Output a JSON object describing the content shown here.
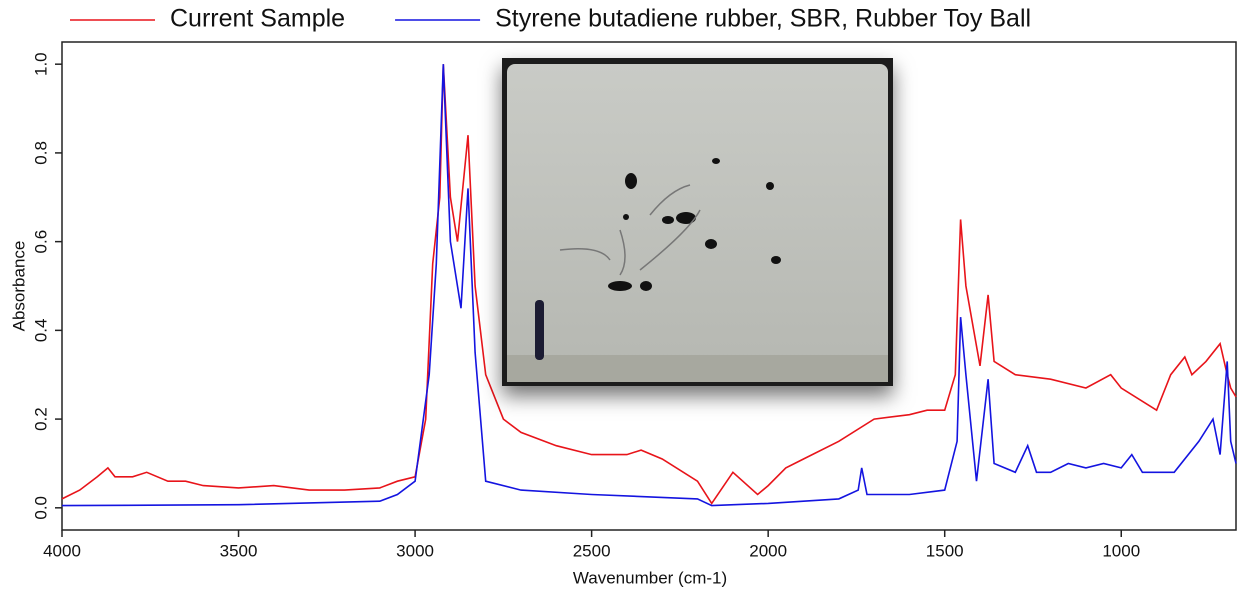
{
  "chart_data": {
    "type": "line",
    "xlabel": "Wavenumber (cm-1)",
    "ylabel": "Absorbance",
    "xlim": [
      4000,
      675
    ],
    "ylim": [
      -0.05,
      1.05
    ],
    "xticks": [
      4000,
      3500,
      3000,
      2500,
      2000,
      1500,
      1000
    ],
    "yticks": [
      {
        "value": 0,
        "label": "0.0"
      },
      0.2,
      0.4,
      0.6,
      0.8,
      {
        "value": 1,
        "label": "1.0"
      }
    ],
    "grid": false,
    "legend": "top",
    "series": [
      {
        "name": "Current Sample",
        "color": "#e8141a",
        "x": [
          4000,
          3950,
          3900,
          3870,
          3850,
          3800,
          3760,
          3700,
          3650,
          3600,
          3500,
          3400,
          3300,
          3200,
          3100,
          3050,
          3000,
          2970,
          2950,
          2930,
          2920,
          2900,
          2880,
          2850,
          2830,
          2800,
          2750,
          2700,
          2600,
          2500,
          2400,
          2360,
          2300,
          2200,
          2160,
          2100,
          2030,
          2000,
          1950,
          1900,
          1800,
          1700,
          1600,
          1550,
          1500,
          1470,
          1455,
          1440,
          1400,
          1377,
          1360,
          1300,
          1200,
          1100,
          1030,
          1000,
          900,
          860,
          820,
          800,
          760,
          720,
          700,
          690,
          675
        ],
        "values": [
          0.02,
          0.04,
          0.07,
          0.09,
          0.07,
          0.07,
          0.08,
          0.06,
          0.06,
          0.05,
          0.045,
          0.05,
          0.04,
          0.04,
          0.045,
          0.06,
          0.07,
          0.2,
          0.55,
          0.7,
          1.0,
          0.7,
          0.6,
          0.84,
          0.5,
          0.3,
          0.2,
          0.17,
          0.14,
          0.12,
          0.12,
          0.13,
          0.11,
          0.06,
          0.01,
          0.08,
          0.03,
          0.05,
          0.09,
          0.11,
          0.15,
          0.2,
          0.21,
          0.22,
          0.22,
          0.3,
          0.65,
          0.5,
          0.32,
          0.48,
          0.33,
          0.3,
          0.29,
          0.27,
          0.3,
          0.27,
          0.22,
          0.3,
          0.34,
          0.3,
          0.33,
          0.37,
          0.3,
          0.27,
          0.25
        ]
      },
      {
        "name": "Styrene butadiene rubber, SBR, Rubber Toy Ball",
        "color": "#1414e0",
        "x": [
          4000,
          3500,
          3100,
          3050,
          3000,
          2960,
          2940,
          2920,
          2900,
          2870,
          2850,
          2830,
          2800,
          2700,
          2500,
          2200,
          2160,
          2000,
          1800,
          1745,
          1735,
          1720,
          1600,
          1500,
          1465,
          1455,
          1440,
          1410,
          1377,
          1360,
          1300,
          1265,
          1240,
          1200,
          1150,
          1100,
          1050,
          1000,
          970,
          940,
          850,
          780,
          740,
          720,
          700,
          690,
          675
        ],
        "values": [
          0.005,
          0.007,
          0.015,
          0.03,
          0.06,
          0.3,
          0.55,
          1.0,
          0.6,
          0.45,
          0.72,
          0.35,
          0.06,
          0.04,
          0.03,
          0.02,
          0.005,
          0.01,
          0.02,
          0.04,
          0.09,
          0.03,
          0.03,
          0.04,
          0.15,
          0.43,
          0.3,
          0.06,
          0.29,
          0.1,
          0.08,
          0.14,
          0.08,
          0.08,
          0.1,
          0.09,
          0.1,
          0.09,
          0.12,
          0.08,
          0.08,
          0.15,
          0.2,
          0.12,
          0.33,
          0.15,
          0.1
        ]
      }
    ]
  }
}
